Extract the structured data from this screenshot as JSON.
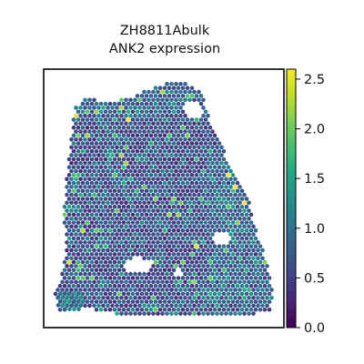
{
  "chart_data": {
    "type": "scatter",
    "title_line1": "ZH8811Abulk",
    "title_line2": "ANK2 expression",
    "xlabel": "",
    "ylabel": "",
    "grid": false,
    "colormap": "viridis",
    "colorbar": {
      "vmin": 0.0,
      "vmax": 2.6,
      "ticks": [
        "0.0",
        "0.5",
        "1.0",
        "1.5",
        "2.0",
        "2.5"
      ],
      "tick_values": [
        0.0,
        0.5,
        1.0,
        1.5,
        2.0,
        2.5
      ],
      "position": "right"
    },
    "series": [
      {
        "description_of_spots": "hexagonal grid of spatial transcriptomics spots colored by ANK2 expression",
        "spot_count_approx": 1800,
        "typical_value_range": [
          0.0,
          2.6
        ]
      }
    ]
  }
}
